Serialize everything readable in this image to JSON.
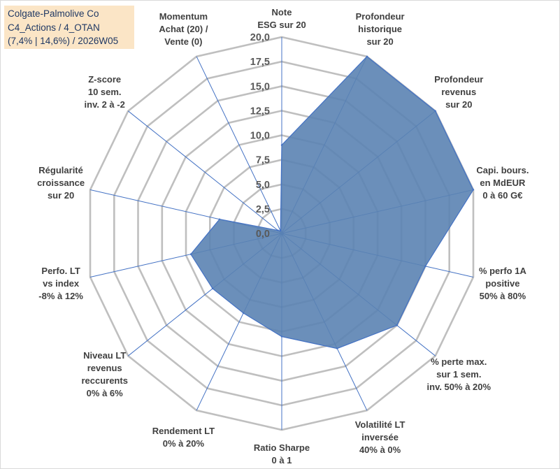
{
  "title_box": {
    "line1": "Colgate-Palmolive Co",
    "line2": "C4_Actions / 4_OTAN",
    "line3": "(7,4% | 14,6%) / 2026W05",
    "background": "#fbe5c6",
    "text_color": "#1f3864"
  },
  "chart_data": {
    "type": "radar",
    "title": "Colgate-Palmolive Co",
    "rmin": 0,
    "rmax": 20,
    "ticks": [
      "0,0",
      "2,5",
      "5,0",
      "7,5",
      "10,0",
      "12,5",
      "15,0",
      "17,5",
      "20,0"
    ],
    "fill_color": "#5b83b3",
    "line_color": "#4472c4",
    "grid_color": "#bfbfbf",
    "categories": [
      {
        "label": "Note\nESG sur 20",
        "value": 9.0
      },
      {
        "label": "Profondeur\nhistorique\nsur 20",
        "value": 20.0
      },
      {
        "label": "Profondeur\nrevenus\nsur 20",
        "value": 20.0
      },
      {
        "label": "Capi. bours.\nen MdEUR\n0 à 60 G€",
        "value": 20.0
      },
      {
        "label": "% perfo 1A\npositive\n50% à 80%",
        "value": 15.0
      },
      {
        "label": "% perte max.\nsur 1 sem.\ninv. 50% à 20%",
        "value": 15.0
      },
      {
        "label": "Volatilité LT\ninversée\n40% à 0%",
        "value": 13.0
      },
      {
        "label": "Ratio Sharpe\n0 à 1",
        "value": 10.5
      },
      {
        "label": "Rendement LT\n0% à 20%",
        "value": 9.0
      },
      {
        "label": "Niveau LT\nrevenus\nreccurents\n0% à 6%",
        "value": 9.0
      },
      {
        "label": "Perfo. LT\nvs index\n-8% à 12%",
        "value": 9.5
      },
      {
        "label": "Régularité\ncroissance\nsur 20",
        "value": 6.5
      },
      {
        "label": "Z-score\n10 sem.\ninv. 2 à -2",
        "value": 0.5
      },
      {
        "label": "Momentum\nAchat (20) /\nVente (0)",
        "value": 0.3
      }
    ]
  }
}
